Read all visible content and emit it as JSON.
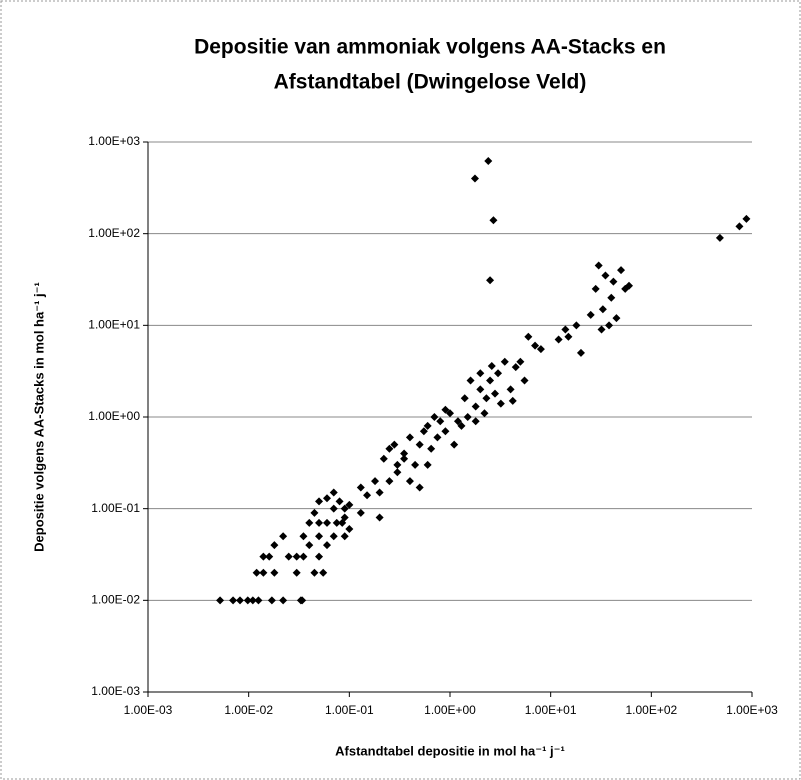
{
  "chart_data": {
    "type": "scatter",
    "title": [
      "Depositie van ammoniak volgens AA-Stacks en",
      "Afstandtabel (Dwingelose Veld)"
    ],
    "x_label": "Afstandtabel depositie in mol ha⁻¹ j⁻¹",
    "y_label": "Depositie volgens AA-Stacks in mol ha⁻¹ j⁻¹",
    "log_x": true,
    "log_y": true,
    "grid": "y",
    "color": "#000000",
    "xlim": [
      0.001,
      1000
    ],
    "ylim": [
      0.001,
      1000
    ],
    "xticks": [
      {
        "value": 0.001,
        "label": "1.00E-03"
      },
      {
        "value": 0.01,
        "label": "1.00E-02"
      },
      {
        "value": 0.1,
        "label": "1.00E-01"
      },
      {
        "value": 1,
        "label": "1.00E+00"
      },
      {
        "value": 10,
        "label": "1.00E+01"
      },
      {
        "value": 100,
        "label": "1.00E+02"
      },
      {
        "value": 1000,
        "label": "1.00E+03"
      }
    ],
    "yticks": [
      {
        "value": 0.001,
        "label": "1.00E-03"
      },
      {
        "value": 0.01,
        "label": "1.00E-02"
      },
      {
        "value": 0.1,
        "label": "1.00E-01"
      },
      {
        "value": 1,
        "label": "1.00E+00"
      },
      {
        "value": 10,
        "label": "1.00E+01"
      },
      {
        "value": 100,
        "label": "1.00E+02"
      },
      {
        "value": 1000,
        "label": "1.00E+03"
      }
    ],
    "x": [
      0.0052,
      0.007,
      0.0082,
      0.0098,
      0.011,
      0.0125,
      0.017,
      0.022,
      0.034,
      0.033,
      0.012,
      0.014,
      0.018,
      0.03,
      0.045,
      0.055,
      0.014,
      0.016,
      0.025,
      0.03,
      0.035,
      0.05,
      0.018,
      0.04,
      0.06,
      0.022,
      0.035,
      0.05,
      0.07,
      0.09,
      0.04,
      0.05,
      0.06,
      0.075,
      0.085,
      0.1,
      0.09,
      0.045,
      0.07,
      0.09,
      0.13,
      0.2,
      0.05,
      0.06,
      0.08,
      0.1,
      0.15,
      0.18,
      0.13,
      0.07,
      0.2,
      0.25,
      0.3,
      0.22,
      0.28,
      0.3,
      0.35,
      0.4,
      0.45,
      0.5,
      0.55,
      0.6,
      0.65,
      0.7,
      0.75,
      0.8,
      0.9,
      1.0,
      1.1,
      1.2,
      0.4,
      0.5,
      0.35,
      0.25,
      0.6,
      0.9,
      1.3,
      1.5,
      1.8,
      1.6,
      2.0,
      2.3,
      2.5,
      2.8,
      3.0,
      3.5,
      4.0,
      4.5,
      5,
      5.5,
      6,
      7,
      8,
      1.4,
      1.8,
      2.2,
      3.2,
      4.2,
      2,
      2.6,
      12,
      14,
      15,
      18,
      20,
      25,
      28,
      30,
      32,
      35,
      40,
      45,
      50,
      55,
      60,
      38,
      33,
      42,
      1.77,
      2.4,
      2.7,
      2.5,
      480,
      750,
      880
    ],
    "values": [
      0.01,
      0.01,
      0.01,
      0.01,
      0.01,
      0.01,
      0.01,
      0.01,
      0.01,
      0.01,
      0.02,
      0.02,
      0.02,
      0.02,
      0.02,
      0.02,
      0.03,
      0.03,
      0.03,
      0.03,
      0.03,
      0.03,
      0.04,
      0.04,
      0.04,
      0.05,
      0.05,
      0.05,
      0.05,
      0.05,
      0.07,
      0.07,
      0.07,
      0.07,
      0.07,
      0.06,
      0.08,
      0.09,
      0.1,
      0.1,
      0.09,
      0.08,
      0.12,
      0.13,
      0.12,
      0.11,
      0.14,
      0.2,
      0.17,
      0.15,
      0.15,
      0.2,
      0.3,
      0.35,
      0.5,
      0.25,
      0.4,
      0.6,
      0.3,
      0.5,
      0.7,
      0.8,
      0.45,
      1.0,
      0.6,
      0.9,
      0.7,
      1.1,
      0.5,
      0.9,
      0.2,
      0.17,
      0.35,
      0.45,
      0.3,
      1.2,
      0.8,
      1.0,
      1.3,
      2.5,
      2.0,
      1.6,
      2.5,
      1.8,
      3.0,
      4.0,
      2.0,
      3.5,
      4,
      2.5,
      7.5,
      6,
      5.5,
      1.6,
      0.9,
      1.1,
      1.4,
      1.5,
      3,
      3.6,
      7,
      9,
      7.5,
      10,
      5,
      13,
      25,
      45,
      9,
      35,
      20,
      12,
      40,
      25,
      27,
      10,
      15,
      30,
      400,
      620,
      140,
      31,
      90,
      120,
      145
    ]
  }
}
